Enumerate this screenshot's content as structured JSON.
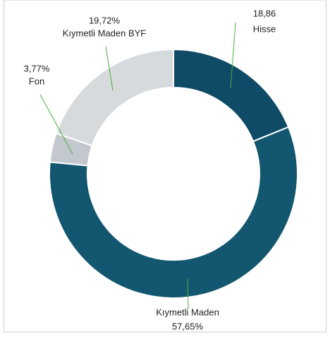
{
  "chart_data": {
    "type": "donut",
    "categories": [
      "Hisse",
      "Kıymetli Maden",
      "Fon",
      "Kıymetli Maden BYF"
    ],
    "values": [
      18.86,
      57.65,
      3.77,
      19.72
    ],
    "value_labels": [
      "18,86",
      "57,65%",
      "3,77%",
      "19,72%"
    ],
    "colors": [
      "#0f4a66",
      "#13566f",
      "#c2c8cd",
      "#d6dadd"
    ]
  }
}
